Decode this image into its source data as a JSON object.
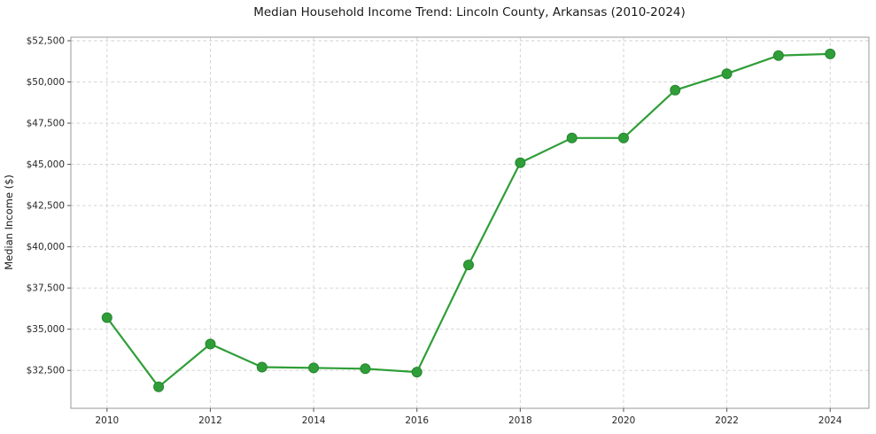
{
  "chart_data": {
    "type": "line",
    "title": "Median Household Income Trend: Lincoln County, Arkansas (2010-2024)",
    "xlabel": "",
    "ylabel": "Median Income ($)",
    "x": [
      2010,
      2011,
      2012,
      2013,
      2014,
      2015,
      2016,
      2017,
      2018,
      2019,
      2020,
      2021,
      2022,
      2023,
      2024
    ],
    "values": [
      35700,
      31500,
      34100,
      32700,
      32650,
      32600,
      32400,
      38900,
      45100,
      46600,
      46600,
      49500,
      50500,
      51600,
      51700
    ],
    "xlim": [
      2009.3,
      2024.75
    ],
    "ylim": [
      30200,
      52715
    ],
    "xticks": {
      "values": [
        2010,
        2012,
        2014,
        2016,
        2018,
        2020,
        2022,
        2024
      ],
      "labels": [
        "2010",
        "2012",
        "2014",
        "2016",
        "2018",
        "2020",
        "2022",
        "2024"
      ]
    },
    "yticks": {
      "values": [
        32500,
        35000,
        37500,
        40000,
        42500,
        45000,
        47500,
        50000,
        52500
      ],
      "labels": [
        "$32,500",
        "$35,000",
        "$37,500",
        "$40,000",
        "$42,500",
        "$45,000",
        "$47,500",
        "$50,000",
        "$52,500"
      ]
    },
    "grid": true,
    "legend": "none",
    "line_color": "#2f9e38",
    "marker_color": "#2f9e38",
    "marker_edge_color": "#27862f",
    "grid_color": "#cfcfcf",
    "spine_color": "#9a9a9a",
    "tick_color": "#555555",
    "background_color": "#ffffff"
  }
}
